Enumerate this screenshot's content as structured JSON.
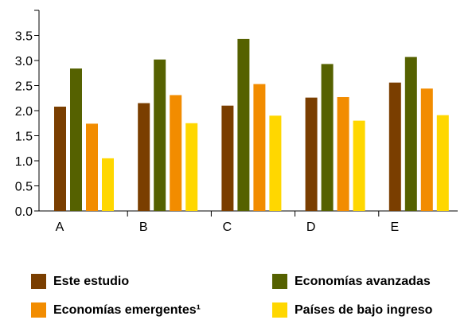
{
  "chart_data": {
    "type": "bar",
    "title": "",
    "xlabel": "",
    "ylabel": "",
    "categories": [
      "A",
      "B",
      "C",
      "D",
      "E"
    ],
    "ylim": [
      0,
      4.0
    ],
    "yticks": [
      "0.0",
      "0.5",
      "1.0",
      "1.5",
      "2.0",
      "2.5",
      "3.0",
      "3.5"
    ],
    "grid": false,
    "legend_position": "bottom",
    "series": [
      {
        "name": "Este estudio",
        "color": "#7a3e00",
        "values": [
          2.08,
          2.15,
          2.1,
          2.26,
          2.56
        ]
      },
      {
        "name": "Economías avanzadas",
        "color": "#556100",
        "values": [
          2.84,
          3.02,
          3.43,
          2.93,
          3.07
        ]
      },
      {
        "name": "Economías emergentes¹",
        "color": "#f28c00",
        "values": [
          1.74,
          2.31,
          2.53,
          2.27,
          2.44
        ]
      },
      {
        "name": "Países de bajo ingreso",
        "color": "#ffd700",
        "values": [
          1.05,
          1.75,
          1.9,
          1.8,
          1.91
        ]
      }
    ]
  }
}
